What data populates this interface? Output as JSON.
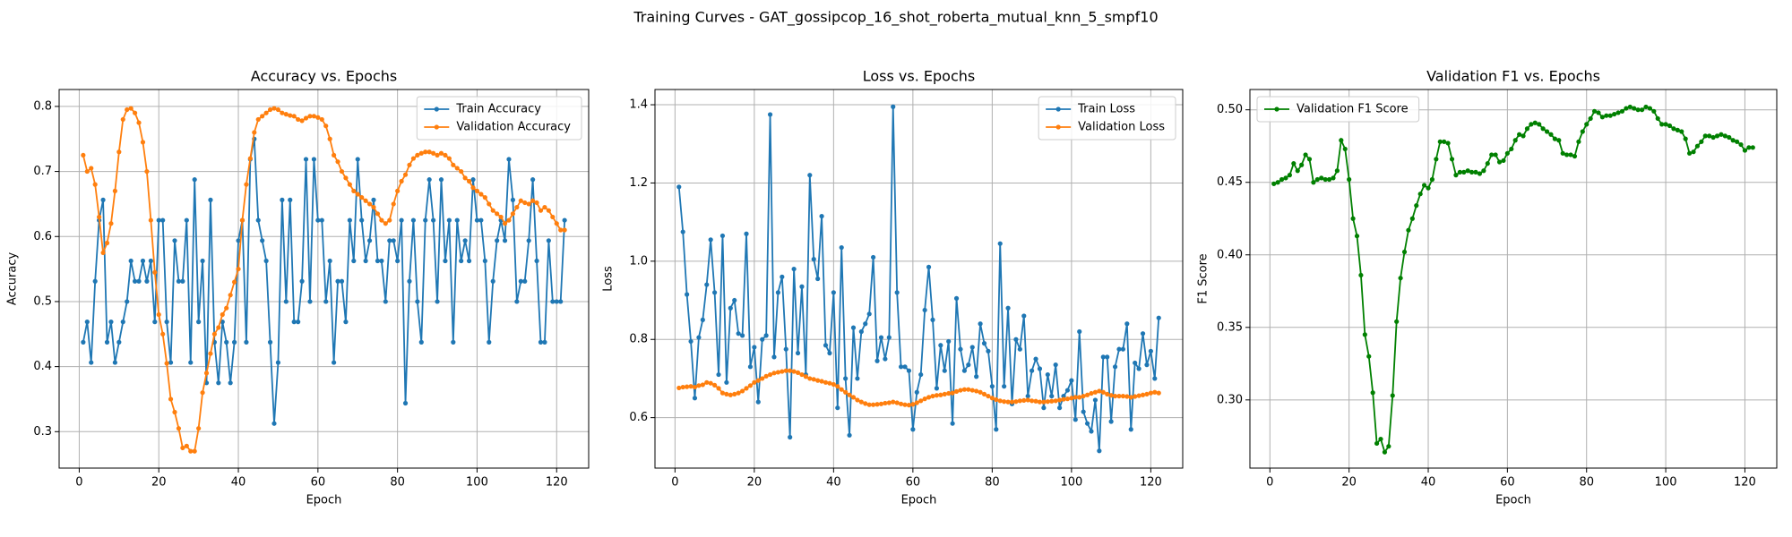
{
  "title": "Training Curves - GAT_gossipcop_16_shot_roberta_mutual_knn_5_smpf10",
  "chart_data": [
    {
      "type": "line",
      "title": "Accuracy vs. Epochs",
      "x_label": "Epoch",
      "y_label": "Accuracy",
      "grid": true,
      "legend": "upper right",
      "x": [
        1,
        2,
        3,
        4,
        5,
        6,
        7,
        8,
        9,
        10,
        11,
        12,
        13,
        14,
        15,
        16,
        17,
        18,
        19,
        20,
        21,
        22,
        23,
        24,
        25,
        26,
        27,
        28,
        29,
        30,
        31,
        32,
        33,
        34,
        35,
        36,
        37,
        38,
        39,
        40,
        41,
        42,
        43,
        44,
        45,
        46,
        47,
        48,
        49,
        50,
        51,
        52,
        53,
        54,
        55,
        56,
        57,
        58,
        59,
        60,
        61,
        62,
        63,
        64,
        65,
        66,
        67,
        68,
        69,
        70,
        71,
        72,
        73,
        74,
        75,
        76,
        77,
        78,
        79,
        80,
        81,
        82,
        83,
        84,
        85,
        86,
        87,
        88,
        89,
        90,
        91,
        92,
        93,
        94,
        95,
        96,
        97,
        98,
        99,
        100,
        101,
        102,
        103,
        104,
        105,
        106,
        107,
        108,
        109,
        110,
        111,
        112,
        113,
        114,
        115,
        116,
        117,
        118,
        119,
        120,
        121,
        122
      ],
      "xlim": [
        -5.05,
        128.05
      ],
      "xticks": [
        0,
        20,
        40,
        60,
        80,
        100,
        120
      ],
      "ylim": [
        0.244,
        0.826
      ],
      "yticks": [
        0.3,
        0.4,
        0.5,
        0.6,
        0.7,
        0.8
      ],
      "series": [
        {
          "name": "Train Accuracy",
          "color": "#1f77b4",
          "values": [
            0.4375,
            0.46875,
            0.40625,
            0.53125,
            0.625,
            0.65625,
            0.4375,
            0.46875,
            0.40625,
            0.4375,
            0.46875,
            0.5,
            0.5625,
            0.53125,
            0.53125,
            0.5625,
            0.53125,
            0.5625,
            0.46875,
            0.625,
            0.625,
            0.46875,
            0.40625,
            0.59375,
            0.53125,
            0.53125,
            0.625,
            0.40625,
            0.6875,
            0.46875,
            0.5625,
            0.375,
            0.65625,
            0.4375,
            0.375,
            0.46875,
            0.4375,
            0.375,
            0.4375,
            0.59375,
            0.625,
            0.4375,
            0.71875,
            0.75,
            0.625,
            0.59375,
            0.5625,
            0.4375,
            0.3125,
            0.40625,
            0.65625,
            0.5,
            0.65625,
            0.46875,
            0.46875,
            0.53125,
            0.71875,
            0.5,
            0.71875,
            0.625,
            0.625,
            0.5,
            0.5625,
            0.40625,
            0.53125,
            0.53125,
            0.46875,
            0.625,
            0.5625,
            0.71875,
            0.625,
            0.5625,
            0.59375,
            0.65625,
            0.5625,
            0.5625,
            0.5,
            0.59375,
            0.59375,
            0.5625,
            0.625,
            0.34375,
            0.53125,
            0.625,
            0.5,
            0.4375,
            0.625,
            0.6875,
            0.625,
            0.5,
            0.6875,
            0.5625,
            0.625,
            0.4375,
            0.625,
            0.5625,
            0.59375,
            0.5625,
            0.6875,
            0.625,
            0.625,
            0.5625,
            0.4375,
            0.53125,
            0.59375,
            0.625,
            0.59375,
            0.71875,
            0.65625,
            0.5,
            0.53125,
            0.53125,
            0.59375,
            0.6875,
            0.5625,
            0.4375,
            0.4375,
            0.59375,
            0.5,
            0.5,
            0.5,
            0.625
          ]
        },
        {
          "name": "Validation Accuracy",
          "color": "#ff7f0e",
          "values": [
            0.725,
            0.7,
            0.705,
            0.68,
            0.63,
            0.575,
            0.59,
            0.62,
            0.67,
            0.73,
            0.78,
            0.795,
            0.797,
            0.79,
            0.775,
            0.745,
            0.7,
            0.625,
            0.545,
            0.48,
            0.45,
            0.405,
            0.35,
            0.33,
            0.305,
            0.275,
            0.278,
            0.27,
            0.27,
            0.305,
            0.36,
            0.39,
            0.42,
            0.45,
            0.46,
            0.48,
            0.49,
            0.51,
            0.53,
            0.55,
            0.625,
            0.68,
            0.72,
            0.76,
            0.78,
            0.785,
            0.79,
            0.795,
            0.797,
            0.795,
            0.79,
            0.788,
            0.786,
            0.785,
            0.78,
            0.778,
            0.782,
            0.785,
            0.785,
            0.783,
            0.78,
            0.77,
            0.75,
            0.725,
            0.715,
            0.7,
            0.69,
            0.68,
            0.67,
            0.665,
            0.66,
            0.655,
            0.65,
            0.645,
            0.635,
            0.625,
            0.62,
            0.625,
            0.65,
            0.67,
            0.685,
            0.695,
            0.71,
            0.72,
            0.725,
            0.728,
            0.73,
            0.73,
            0.728,
            0.725,
            0.728,
            0.725,
            0.72,
            0.71,
            0.705,
            0.7,
            0.69,
            0.685,
            0.675,
            0.67,
            0.665,
            0.66,
            0.65,
            0.64,
            0.635,
            0.63,
            0.62,
            0.625,
            0.635,
            0.645,
            0.655,
            0.652,
            0.65,
            0.655,
            0.652,
            0.64,
            0.645,
            0.64,
            0.63,
            0.62,
            0.61,
            0.61
          ]
        }
      ]
    },
    {
      "type": "line",
      "title": "Loss vs. Epochs",
      "x_label": "Epoch",
      "y_label": "Loss",
      "grid": true,
      "legend": "upper right",
      "x": [
        1,
        2,
        3,
        4,
        5,
        6,
        7,
        8,
        9,
        10,
        11,
        12,
        13,
        14,
        15,
        16,
        17,
        18,
        19,
        20,
        21,
        22,
        23,
        24,
        25,
        26,
        27,
        28,
        29,
        30,
        31,
        32,
        33,
        34,
        35,
        36,
        37,
        38,
        39,
        40,
        41,
        42,
        43,
        44,
        45,
        46,
        47,
        48,
        49,
        50,
        51,
        52,
        53,
        54,
        55,
        56,
        57,
        58,
        59,
        60,
        61,
        62,
        63,
        64,
        65,
        66,
        67,
        68,
        69,
        70,
        71,
        72,
        73,
        74,
        75,
        76,
        77,
        78,
        79,
        80,
        81,
        82,
        83,
        84,
        85,
        86,
        87,
        88,
        89,
        90,
        91,
        92,
        93,
        94,
        95,
        96,
        97,
        98,
        99,
        100,
        101,
        102,
        103,
        104,
        105,
        106,
        107,
        108,
        109,
        110,
        111,
        112,
        113,
        114,
        115,
        116,
        117,
        118,
        119,
        120,
        121,
        122
      ],
      "xlim": [
        -5.05,
        128.05
      ],
      "xticks": [
        0,
        20,
        40,
        60,
        80,
        100,
        120
      ],
      "ylim": [
        0.471,
        1.439
      ],
      "yticks": [
        0.6,
        0.8,
        {
          "value": 1,
          "label": "1.0"
        },
        1.2,
        1.4
      ],
      "series": [
        {
          "name": "Train Loss",
          "color": "#1f77b4",
          "values": [
            1.19,
            1.075,
            0.915,
            0.795,
            0.65,
            0.805,
            0.85,
            0.94,
            1.055,
            0.92,
            0.71,
            1.065,
            0.69,
            0.88,
            0.9,
            0.815,
            0.81,
            1.07,
            0.73,
            0.78,
            0.64,
            0.8,
            0.81,
            1.375,
            0.755,
            0.92,
            0.96,
            0.775,
            0.55,
            0.98,
            0.765,
            0.935,
            0.71,
            1.22,
            1.005,
            0.955,
            1.115,
            0.785,
            0.765,
            0.92,
            0.625,
            1.035,
            0.7,
            0.555,
            0.83,
            0.7,
            0.82,
            0.84,
            0.865,
            1.01,
            0.745,
            0.805,
            0.75,
            0.805,
            1.395,
            0.92,
            0.73,
            0.73,
            0.72,
            0.57,
            0.665,
            0.71,
            0.875,
            0.985,
            0.85,
            0.675,
            0.785,
            0.72,
            0.795,
            0.585,
            0.905,
            0.775,
            0.72,
            0.735,
            0.78,
            0.705,
            0.84,
            0.79,
            0.77,
            0.68,
            0.57,
            1.045,
            0.68,
            0.88,
            0.635,
            0.8,
            0.775,
            0.86,
            0.655,
            0.72,
            0.75,
            0.725,
            0.625,
            0.71,
            0.655,
            0.735,
            0.625,
            0.655,
            0.67,
            0.695,
            0.595,
            0.82,
            0.615,
            0.585,
            0.565,
            0.645,
            0.515,
            0.755,
            0.755,
            0.59,
            0.73,
            0.775,
            0.775,
            0.84,
            0.57,
            0.74,
            0.725,
            0.815,
            0.735,
            0.77,
            0.7,
            0.855
          ]
        },
        {
          "name": "Validation Loss",
          "color": "#ff7f0e",
          "values": [
            0.676,
            0.678,
            0.679,
            0.68,
            0.678,
            0.682,
            0.684,
            0.69,
            0.688,
            0.683,
            0.675,
            0.663,
            0.66,
            0.658,
            0.66,
            0.663,
            0.668,
            0.675,
            0.682,
            0.69,
            0.695,
            0.7,
            0.706,
            0.71,
            0.714,
            0.716,
            0.718,
            0.72,
            0.72,
            0.718,
            0.715,
            0.71,
            0.705,
            0.7,
            0.698,
            0.695,
            0.693,
            0.69,
            0.688,
            0.685,
            0.68,
            0.672,
            0.665,
            0.658,
            0.652,
            0.645,
            0.64,
            0.636,
            0.633,
            0.633,
            0.634,
            0.635,
            0.637,
            0.638,
            0.64,
            0.638,
            0.635,
            0.633,
            0.632,
            0.634,
            0.638,
            0.643,
            0.648,
            0.652,
            0.655,
            0.657,
            0.658,
            0.66,
            0.662,
            0.663,
            0.667,
            0.67,
            0.672,
            0.672,
            0.67,
            0.668,
            0.665,
            0.66,
            0.655,
            0.65,
            0.646,
            0.643,
            0.641,
            0.64,
            0.64,
            0.641,
            0.643,
            0.644,
            0.645,
            0.643,
            0.642,
            0.64,
            0.64,
            0.641,
            0.642,
            0.643,
            0.645,
            0.647,
            0.648,
            0.65,
            0.652,
            0.652,
            0.655,
            0.658,
            0.662,
            0.665,
            0.668,
            0.665,
            0.66,
            0.657,
            0.655,
            0.655,
            0.655,
            0.654,
            0.652,
            0.654,
            0.656,
            0.658,
            0.66,
            0.663,
            0.665,
            0.663
          ]
        }
      ]
    },
    {
      "type": "line",
      "title": "Validation F1 vs. Epochs",
      "x_label": "Epoch",
      "y_label": "F1 Score",
      "grid": true,
      "legend": "upper left",
      "x": [
        1,
        2,
        3,
        4,
        5,
        6,
        7,
        8,
        9,
        10,
        11,
        12,
        13,
        14,
        15,
        16,
        17,
        18,
        19,
        20,
        21,
        22,
        23,
        24,
        25,
        26,
        27,
        28,
        29,
        30,
        31,
        32,
        33,
        34,
        35,
        36,
        37,
        38,
        39,
        40,
        41,
        42,
        43,
        44,
        45,
        46,
        47,
        48,
        49,
        50,
        51,
        52,
        53,
        54,
        55,
        56,
        57,
        58,
        59,
        60,
        61,
        62,
        63,
        64,
        65,
        66,
        67,
        68,
        69,
        70,
        71,
        72,
        73,
        74,
        75,
        76,
        77,
        78,
        79,
        80,
        81,
        82,
        83,
        84,
        85,
        86,
        87,
        88,
        89,
        90,
        91,
        92,
        93,
        94,
        95,
        96,
        97,
        98,
        99,
        100,
        101,
        102,
        103,
        104,
        105,
        106,
        107,
        108,
        109,
        110,
        111,
        112,
        113,
        114,
        115,
        116,
        117,
        118,
        119,
        120,
        121,
        122
      ],
      "xlim": [
        -5.05,
        128.05
      ],
      "xticks": [
        0,
        20,
        40,
        60,
        80,
        100,
        120
      ],
      "ylim": [
        0.253,
        0.514
      ],
      "yticks": [
        {
          "value": 0.3,
          "label": "0.30"
        },
        0.35,
        {
          "value": 0.4,
          "label": "0.40"
        },
        0.45,
        {
          "value": 0.5,
          "label": "0.50"
        }
      ],
      "series": [
        {
          "name": "Validation F1 Score",
          "color": "#008000",
          "values": [
            0.449,
            0.45,
            0.452,
            0.453,
            0.455,
            0.463,
            0.458,
            0.462,
            0.469,
            0.466,
            0.45,
            0.452,
            0.453,
            0.452,
            0.452,
            0.453,
            0.458,
            0.479,
            0.473,
            0.452,
            0.425,
            0.413,
            0.386,
            0.345,
            0.33,
            0.305,
            0.27,
            0.273,
            0.264,
            0.268,
            0.303,
            0.354,
            0.384,
            0.402,
            0.417,
            0.425,
            0.434,
            0.442,
            0.448,
            0.446,
            0.452,
            0.466,
            0.478,
            0.478,
            0.477,
            0.466,
            0.455,
            0.457,
            0.457,
            0.458,
            0.457,
            0.457,
            0.456,
            0.458,
            0.463,
            0.469,
            0.469,
            0.464,
            0.465,
            0.47,
            0.473,
            0.479,
            0.483,
            0.482,
            0.487,
            0.49,
            0.491,
            0.49,
            0.487,
            0.485,
            0.483,
            0.48,
            0.479,
            0.47,
            0.469,
            0.469,
            0.468,
            0.478,
            0.485,
            0.49,
            0.494,
            0.499,
            0.498,
            0.495,
            0.496,
            0.496,
            0.497,
            0.498,
            0.499,
            0.501,
            0.502,
            0.501,
            0.5,
            0.5,
            0.502,
            0.501,
            0.499,
            0.494,
            0.49,
            0.49,
            0.489,
            0.487,
            0.486,
            0.485,
            0.48,
            0.47,
            0.471,
            0.475,
            0.478,
            0.482,
            0.482,
            0.481,
            0.482,
            0.483,
            0.482,
            0.481,
            0.479,
            0.478,
            0.476,
            0.472,
            0.474,
            0.474
          ]
        }
      ]
    }
  ]
}
